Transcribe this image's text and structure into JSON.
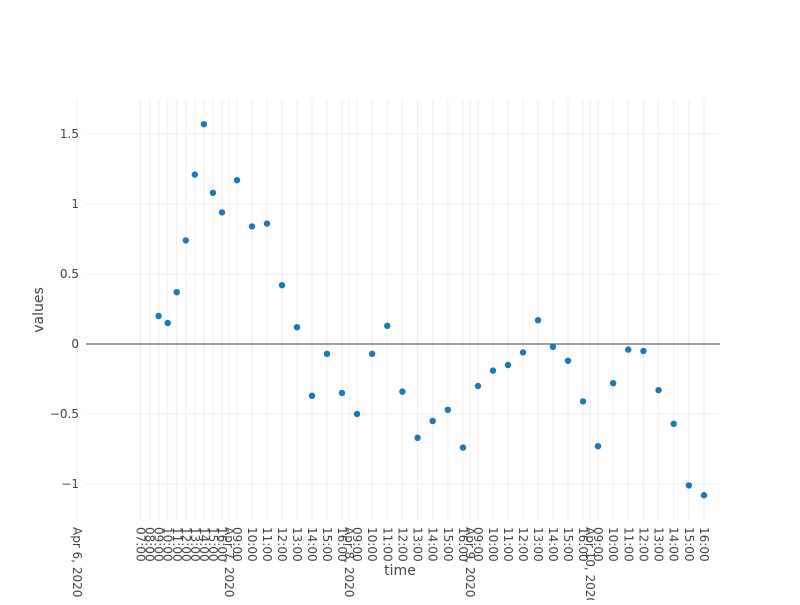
{
  "chart_data": {
    "type": "scatter",
    "title": "",
    "xlabel": "time",
    "ylabel": "values",
    "marker_color": "#1f77b4",
    "grid": true,
    "legend": "none",
    "ylim": [
      -1.25,
      1.75
    ],
    "yticks": [
      1.5,
      1,
      0.5,
      0,
      -0.5,
      -1
    ],
    "ytick_labels": [
      "1.5",
      "1",
      "0.5",
      "0",
      "−0.5",
      "−1"
    ],
    "x_ticks": [
      {
        "t": "2020-04-06 00:00",
        "label": "Apr 6, 2020"
      },
      {
        "t": "2020-04-06 07:00",
        "label": "07:00"
      },
      {
        "t": "2020-04-06 08:00",
        "label": "08:00"
      },
      {
        "t": "2020-04-06 09:00",
        "label": "09:00"
      },
      {
        "t": "2020-04-06 10:00",
        "label": "10:00"
      },
      {
        "t": "2020-04-06 11:00",
        "label": "11:00"
      },
      {
        "t": "2020-04-06 12:00",
        "label": "12:00"
      },
      {
        "t": "2020-04-06 13:00",
        "label": "13:00"
      },
      {
        "t": "2020-04-06 14:00",
        "label": "14:00"
      },
      {
        "t": "2020-04-06 15:00",
        "label": "15:00"
      },
      {
        "t": "2020-04-06 16:00",
        "label": "16:00"
      },
      {
        "t": "2020-04-07 00:00",
        "label": "Apr 7, 2020"
      },
      {
        "t": "2020-04-07 09:00",
        "label": "09:00"
      },
      {
        "t": "2020-04-07 10:00",
        "label": "10:00"
      },
      {
        "t": "2020-04-07 11:00",
        "label": "11:00"
      },
      {
        "t": "2020-04-07 12:00",
        "label": "12:00"
      },
      {
        "t": "2020-04-07 13:00",
        "label": "13:00"
      },
      {
        "t": "2020-04-07 14:00",
        "label": "14:00"
      },
      {
        "t": "2020-04-07 15:00",
        "label": "15:00"
      },
      {
        "t": "2020-04-07 16:00",
        "label": "16:00"
      },
      {
        "t": "2020-04-08 00:00",
        "label": "Apr 8, 2020"
      },
      {
        "t": "2020-04-08 09:00",
        "label": "09:00"
      },
      {
        "t": "2020-04-08 10:00",
        "label": "10:00"
      },
      {
        "t": "2020-04-08 11:00",
        "label": "11:00"
      },
      {
        "t": "2020-04-08 12:00",
        "label": "12:00"
      },
      {
        "t": "2020-04-08 13:00",
        "label": "13:00"
      },
      {
        "t": "2020-04-08 14:00",
        "label": "14:00"
      },
      {
        "t": "2020-04-08 15:00",
        "label": "15:00"
      },
      {
        "t": "2020-04-08 16:00",
        "label": "16:00"
      },
      {
        "t": "2020-04-09 00:00",
        "label": "Apr 9, 2020"
      },
      {
        "t": "2020-04-09 09:00",
        "label": "09:00"
      },
      {
        "t": "2020-04-09 10:00",
        "label": "10:00"
      },
      {
        "t": "2020-04-09 11:00",
        "label": "11:00"
      },
      {
        "t": "2020-04-09 12:00",
        "label": "12:00"
      },
      {
        "t": "2020-04-09 13:00",
        "label": "13:00"
      },
      {
        "t": "2020-04-09 14:00",
        "label": "14:00"
      },
      {
        "t": "2020-04-09 15:00",
        "label": "15:00"
      },
      {
        "t": "2020-04-09 16:00",
        "label": "16:00"
      },
      {
        "t": "2020-04-10 00:00",
        "label": "Apr 10, 2020"
      },
      {
        "t": "2020-04-10 09:00",
        "label": "09:00"
      },
      {
        "t": "2020-04-10 10:00",
        "label": "10:00"
      },
      {
        "t": "2020-04-10 11:00",
        "label": "11:00"
      },
      {
        "t": "2020-04-10 12:00",
        "label": "12:00"
      },
      {
        "t": "2020-04-10 13:00",
        "label": "13:00"
      },
      {
        "t": "2020-04-10 14:00",
        "label": "14:00"
      },
      {
        "t": "2020-04-10 15:00",
        "label": "15:00"
      },
      {
        "t": "2020-04-10 16:00",
        "label": "16:00"
      }
    ],
    "points": [
      {
        "x": "2020-04-06 09:00",
        "y": 0.2
      },
      {
        "x": "2020-04-06 10:00",
        "y": 0.15
      },
      {
        "x": "2020-04-06 11:00",
        "y": 0.37
      },
      {
        "x": "2020-04-06 12:00",
        "y": 0.74
      },
      {
        "x": "2020-04-06 13:00",
        "y": 1.21
      },
      {
        "x": "2020-04-06 14:00",
        "y": 1.57
      },
      {
        "x": "2020-04-06 15:00",
        "y": 1.08
      },
      {
        "x": "2020-04-06 16:00",
        "y": 0.94
      },
      {
        "x": "2020-04-07 09:00",
        "y": 1.17
      },
      {
        "x": "2020-04-07 10:00",
        "y": 0.84
      },
      {
        "x": "2020-04-07 11:00",
        "y": 0.86
      },
      {
        "x": "2020-04-07 12:00",
        "y": 0.42
      },
      {
        "x": "2020-04-07 13:00",
        "y": 0.12
      },
      {
        "x": "2020-04-07 14:00",
        "y": -0.37
      },
      {
        "x": "2020-04-07 15:00",
        "y": -0.07
      },
      {
        "x": "2020-04-07 16:00",
        "y": -0.35
      },
      {
        "x": "2020-04-08 09:00",
        "y": -0.5
      },
      {
        "x": "2020-04-08 10:00",
        "y": -0.07
      },
      {
        "x": "2020-04-08 11:00",
        "y": 0.13
      },
      {
        "x": "2020-04-08 12:00",
        "y": -0.34
      },
      {
        "x": "2020-04-08 13:00",
        "y": -0.67
      },
      {
        "x": "2020-04-08 14:00",
        "y": -0.55
      },
      {
        "x": "2020-04-08 15:00",
        "y": -0.47
      },
      {
        "x": "2020-04-08 16:00",
        "y": -0.74
      },
      {
        "x": "2020-04-09 09:00",
        "y": -0.3
      },
      {
        "x": "2020-04-09 10:00",
        "y": -0.19
      },
      {
        "x": "2020-04-09 11:00",
        "y": -0.15
      },
      {
        "x": "2020-04-09 12:00",
        "y": -0.06
      },
      {
        "x": "2020-04-09 13:00",
        "y": 0.17
      },
      {
        "x": "2020-04-09 14:00",
        "y": -0.02
      },
      {
        "x": "2020-04-09 15:00",
        "y": -0.12
      },
      {
        "x": "2020-04-09 16:00",
        "y": -0.41
      },
      {
        "x": "2020-04-10 09:00",
        "y": -0.73
      },
      {
        "x": "2020-04-10 10:00",
        "y": -0.28
      },
      {
        "x": "2020-04-10 11:00",
        "y": -0.04
      },
      {
        "x": "2020-04-10 12:00",
        "y": -0.05
      },
      {
        "x": "2020-04-10 13:00",
        "y": -0.33
      },
      {
        "x": "2020-04-10 14:00",
        "y": -0.57
      },
      {
        "x": "2020-04-10 15:00",
        "y": -1.01
      },
      {
        "x": "2020-04-10 16:00",
        "y": -1.08
      }
    ]
  }
}
